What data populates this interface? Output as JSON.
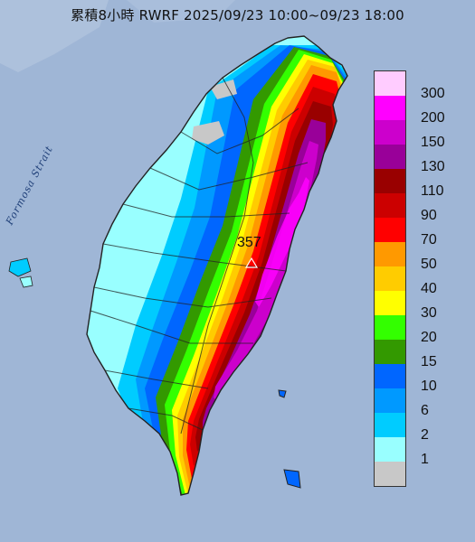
{
  "title": "累積8小時 RWRF 2025/09/23 10:00~09/23 18:00",
  "strait_label": "Formosa Strait",
  "max_value_label": "357",
  "legend": [
    {
      "label": "300",
      "color": "#ffccff"
    },
    {
      "label": "200",
      "color": "#ff00ff"
    },
    {
      "label": "150",
      "color": "#cc00cc"
    },
    {
      "label": "130",
      "color": "#990099"
    },
    {
      "label": "110",
      "color": "#990000"
    },
    {
      "label": "90",
      "color": "#cc0000"
    },
    {
      "label": "70",
      "color": "#ff0000"
    },
    {
      "label": "50",
      "color": "#ff9900"
    },
    {
      "label": "40",
      "color": "#ffcc00"
    },
    {
      "label": "30",
      "color": "#ffff00"
    },
    {
      "label": "20",
      "color": "#33ff00"
    },
    {
      "label": "15",
      "color": "#339900"
    },
    {
      "label": "10",
      "color": "#0066ff"
    },
    {
      "label": "6",
      "color": "#0099ff"
    },
    {
      "label": "2",
      "color": "#00ccff"
    },
    {
      "label": "1",
      "color": "#99ffff"
    },
    {
      "label": "",
      "color": "#c8c8c8"
    }
  ],
  "colors": {
    "sea": "#9fb6d6",
    "island_outline": "#222222"
  }
}
